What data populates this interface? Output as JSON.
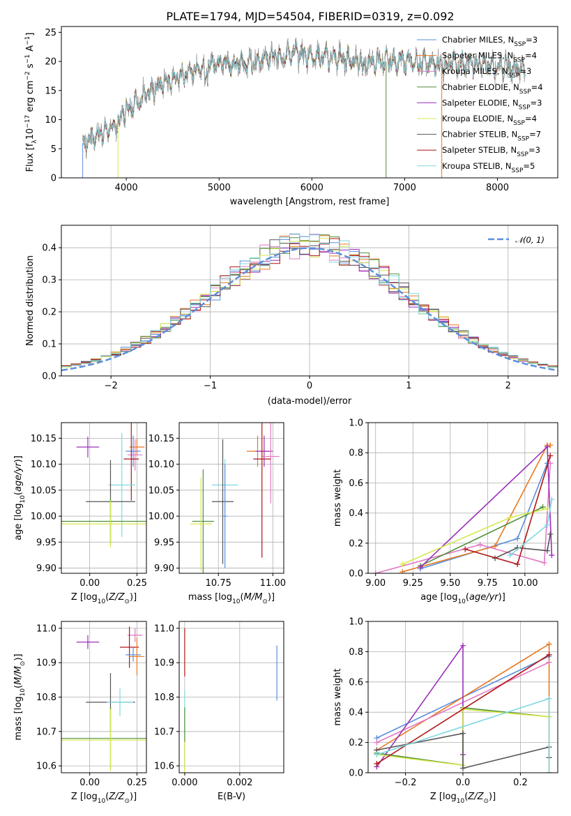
{
  "figure": {
    "title": "PLATE=1794, MJD=54504, FIBERID=0319, z=0.092"
  },
  "colors": {
    "Chabrier MILES": "#5b8fdd",
    "Salpeter MILES": "#e87820",
    "Kroupa MILES": "#e377c2",
    "Chabrier ELODIE": "#4f8f3a",
    "Salpeter ELODIE": "#9b30b8",
    "Kroupa ELODIE": "#d6e84d",
    "Chabrier STELIB": "#555555",
    "Salpeter STELIB": "#b01515",
    "Kroupa STELIB": "#7ed8e0"
  },
  "chart_data": [
    {
      "id": "spectrum",
      "type": "line",
      "xlabel": "wavelength [Angstrom, rest frame]",
      "ylabel": "Flux [f_λ10^-17 erg cm^-2 s^-1 A^-1]",
      "xlim": [
        3300,
        8650
      ],
      "ylim": [
        0,
        26
      ],
      "xticks": [
        4000,
        5000,
        6000,
        7000,
        8000
      ],
      "yticks": [
        0,
        5,
        10,
        15,
        20,
        25
      ],
      "grid": false,
      "legend": "upper right",
      "series": [
        {
          "name": "Chabrier MILES, N_SSP=3",
          "model": "Chabrier MILES"
        },
        {
          "name": "Salpeter MILES, N_SSP=4",
          "model": "Salpeter MILES"
        },
        {
          "name": "Kroupa MILES, N_SSP=3",
          "model": "Kroupa MILES"
        },
        {
          "name": "Chabrier ELODIE, N_SSP=4",
          "model": "Chabrier ELODIE"
        },
        {
          "name": "Salpeter ELODIE, N_SSP=3",
          "model": "Salpeter ELODIE"
        },
        {
          "name": "Kroupa ELODIE, N_SSP=4",
          "model": "Kroupa ELODIE"
        },
        {
          "name": "Chabrier STELIB, N_SSP=7",
          "model": "Chabrier STELIB"
        },
        {
          "name": "Salpeter STELIB, N_SSP=3",
          "model": "Salpeter STELIB"
        },
        {
          "name": "Kroupa STELIB, N_SSP=5",
          "model": "Kroupa STELIB"
        }
      ],
      "continuum": {
        "x": [
          3530,
          3700,
          3900,
          4000,
          4200,
          4400,
          4600,
          4800,
          5000,
          5200,
          5500,
          5800,
          6000,
          6300,
          6600,
          7000,
          7400,
          7800,
          8200,
          8300
        ],
        "y": [
          6,
          7.5,
          9,
          12,
          14,
          16.5,
          17.5,
          19,
          20,
          19.5,
          20.5,
          21.5,
          21,
          20.5,
          20,
          20,
          19.5,
          19.5,
          19,
          18.5
        ]
      }
    },
    {
      "id": "residuals",
      "type": "histogram",
      "xlabel": "(data-model)/error",
      "ylabel": "Normed distribution",
      "xlim": [
        -2.5,
        2.5
      ],
      "ylim": [
        0,
        0.47
      ],
      "xticks": [
        -2,
        -1,
        0,
        1,
        2
      ],
      "yticks": [
        0.0,
        0.1,
        0.2,
        0.3,
        0.4
      ],
      "grid": true,
      "legend": "upper right",
      "reference": {
        "name": "𝒩(0, 1)",
        "color": "#5b8fdd"
      },
      "bin_width": 0.1
    },
    {
      "id": "age_vs_Z",
      "type": "errorbar",
      "xlabel": "Z [log10(Z/Z⊙)]",
      "ylabel": "age [log10(age/yr)]",
      "xlim": [
        -0.15,
        0.3
      ],
      "ylim": [
        9.89,
        10.18
      ],
      "xticks": [
        0.0,
        0.25
      ],
      "yticks": [
        9.9,
        9.95,
        10.0,
        10.05,
        10.1,
        10.15
      ],
      "grid": true,
      "points": [
        {
          "model": "Salpeter ELODIE",
          "x": -0.01,
          "xerr": 0.06,
          "y": 10.133,
          "yerr": 0.02
        },
        {
          "model": "Salpeter MILES",
          "x": 0.25,
          "xerr": 0.04,
          "y": 10.133,
          "yerr": 0.016
        },
        {
          "model": "Chabrier MILES",
          "x": 0.23,
          "xerr": 0.04,
          "y": 10.125,
          "yerr": 0.03
        },
        {
          "model": "Kroupa MILES",
          "x": 0.24,
          "xerr": 0.04,
          "y": 10.118,
          "yerr": 0.03
        },
        {
          "model": "Salpeter STELIB",
          "x": 0.22,
          "xerr": 0.04,
          "y": 10.11,
          "yerr": 0.08
        },
        {
          "model": "Kroupa STELIB",
          "x": 0.17,
          "xerr": 0.07,
          "y": 10.06,
          "yerr": 0.1
        },
        {
          "model": "Chabrier STELIB",
          "x": 0.11,
          "xerr": 0.13,
          "y": 10.028,
          "yerr": 0.08
        },
        {
          "model": "Chabrier ELODIE",
          "x": 0.11,
          "xerr": 0.27,
          "y": 9.99,
          "yerr": 0.045
        },
        {
          "model": "Kroupa ELODIE",
          "x": 0.11,
          "xerr": 0.27,
          "y": 9.985,
          "yerr": 0.045
        }
      ]
    },
    {
      "id": "age_vs_mass",
      "type": "errorbar",
      "xlabel": "mass [log10(M/M⊙)]",
      "ylabel": "",
      "xlim": [
        10.57,
        11.05
      ],
      "ylim": [
        9.89,
        10.18
      ],
      "xticks": [
        10.75,
        11.0
      ],
      "yticks": [
        9.9,
        9.95,
        10.0,
        10.05,
        10.1,
        10.15
      ],
      "grid": true,
      "points": [
        {
          "model": "Salpeter MILES",
          "x": 10.93,
          "xerr": 0.05,
          "y": 10.125,
          "yerr": 0.03
        },
        {
          "model": "Salpeter ELODIE",
          "x": 10.96,
          "xerr": 0.04,
          "y": 10.125,
          "yerr": 0.03
        },
        {
          "model": "Kroupa MILES",
          "x": 10.99,
          "xerr": 0.04,
          "y": 10.115,
          "yerr": 0.09
        },
        {
          "model": "Salpeter STELIB",
          "x": 10.95,
          "xerr": 0.04,
          "y": 10.11,
          "yerr": 0.19
        },
        {
          "model": "Kroupa STELIB",
          "x": 10.78,
          "xerr": 0.06,
          "y": 10.06,
          "yerr": 0.05
        },
        {
          "model": "Chabrier STELIB",
          "x": 10.77,
          "xerr": 0.05,
          "y": 10.028,
          "yerr": 0.12
        },
        {
          "model": "Chabrier ELODIE",
          "x": 10.68,
          "xerr": 0.05,
          "y": 9.99,
          "yerr": 0.1
        },
        {
          "model": "Kroupa ELODIE",
          "x": 10.67,
          "xerr": 0.05,
          "y": 9.985,
          "yerr": 0.09
        },
        {
          "model": "Chabrier MILES",
          "x": 10.78,
          "xerr": 0.01,
          "y": 10.0,
          "yerr": 0.1
        }
      ]
    },
    {
      "id": "mass_weight_vs_age",
      "type": "line",
      "xlabel": "age [log10(age/yr)]",
      "ylabel": "mass weight",
      "xlim": [
        8.95,
        10.22
      ],
      "ylim": [
        0.0,
        1.0
      ],
      "xticks": [
        9.0,
        9.25,
        9.5,
        9.75,
        10.0
      ],
      "yticks": [
        0.0,
        0.2,
        0.4,
        0.6,
        0.8,
        1.0
      ],
      "grid": true,
      "series": [
        {
          "model": "Chabrier MILES",
          "x": [
            9.3,
            9.95,
            10.15
          ],
          "y": [
            0.03,
            0.23,
            0.73
          ]
        },
        {
          "model": "Salpeter MILES",
          "x": [
            9.18,
            9.8,
            10.15,
            10.17
          ],
          "y": [
            0.01,
            0.18,
            0.85,
            0.85
          ]
        },
        {
          "model": "Kroupa MILES",
          "x": [
            9.0,
            9.7,
            10.13,
            10.17
          ],
          "y": [
            0.0,
            0.19,
            0.07,
            0.73
          ]
        },
        {
          "model": "Chabrier ELODIE",
          "x": [
            9.3,
            10.12
          ],
          "y": [
            0.05,
            0.44
          ]
        },
        {
          "model": "Salpeter ELODIE",
          "x": [
            9.3,
            10.15,
            10.18
          ],
          "y": [
            0.04,
            0.84,
            0.12
          ]
        },
        {
          "model": "Kroupa ELODIE",
          "x": [
            9.18,
            9.9,
            10.15
          ],
          "y": [
            0.06,
            0.37,
            0.43
          ]
        },
        {
          "model": "Chabrier STELIB",
          "x": [
            9.8,
            9.95,
            10.15,
            10.17
          ],
          "y": [
            0.1,
            0.17,
            0.15,
            0.26
          ]
        },
        {
          "model": "Salpeter STELIB",
          "x": [
            9.6,
            9.95,
            10.17
          ],
          "y": [
            0.16,
            0.06,
            0.78
          ]
        },
        {
          "model": "Kroupa STELIB",
          "x": [
            9.9,
            10.15,
            10.18
          ],
          "y": [
            0.12,
            0.32,
            0.49
          ]
        }
      ]
    },
    {
      "id": "mass_vs_Z",
      "type": "errorbar",
      "xlabel": "Z [log10(Z/Z⊙)]",
      "ylabel": "mass [log10(M/M⊙)]",
      "xlim": [
        -0.15,
        0.3
      ],
      "ylim": [
        10.58,
        11.02
      ],
      "xticks": [
        0.0,
        0.25
      ],
      "yticks": [
        10.6,
        10.7,
        10.8,
        10.9,
        11.0
      ],
      "grid": true,
      "points": [
        {
          "model": "Salpeter ELODIE",
          "x": -0.01,
          "xerr": 0.06,
          "y": 10.96,
          "yerr": 0.02
        },
        {
          "model": "Kroupa MILES",
          "x": 0.24,
          "xerr": 0.04,
          "y": 10.98,
          "yerr": 0.02
        },
        {
          "model": "Salpeter STELIB",
          "x": 0.21,
          "xerr": 0.05,
          "y": 10.945,
          "yerr": 0.06
        },
        {
          "model": "Chabrier MILES",
          "x": 0.23,
          "xerr": 0.04,
          "y": 10.923,
          "yerr": 0.02
        },
        {
          "model": "Salpeter MILES",
          "x": 0.25,
          "xerr": 0.04,
          "y": 10.918,
          "yerr": 0.055
        },
        {
          "model": "Chabrier STELIB",
          "x": 0.11,
          "xerr": 0.13,
          "y": 10.785,
          "yerr": 0.085
        },
        {
          "model": "Kroupa STELIB",
          "x": 0.16,
          "xerr": 0.07,
          "y": 10.785,
          "yerr": 0.04
        },
        {
          "model": "Chabrier ELODIE",
          "x": 0.11,
          "xerr": 0.27,
          "y": 10.68,
          "yerr": 0.09
        },
        {
          "model": "Kroupa ELODIE",
          "x": 0.11,
          "xerr": 0.27,
          "y": 10.675,
          "yerr": 0.09
        }
      ]
    },
    {
      "id": "mass_vs_ebv",
      "type": "errorbar",
      "xlabel": "E(B-V)",
      "ylabel": "",
      "xlim": [
        -0.0002,
        0.0036
      ],
      "ylim": [
        10.58,
        11.02
      ],
      "xticks": [
        0.0,
        0.002
      ],
      "yticks": [
        10.6,
        10.7,
        10.8,
        10.9,
        11.0
      ],
      "grid": true,
      "points": [
        {
          "model": "Chabrier MILES",
          "x": 0.00335,
          "xerr": 0,
          "y": 10.87,
          "yerr": 0.08
        },
        {
          "model": "Salpeter STELIB",
          "x": 0.0,
          "xerr": 0,
          "y": 10.93,
          "yerr": 0.07
        },
        {
          "model": "Kroupa STELIB",
          "x": 0.0,
          "xerr": 0,
          "y": 10.75,
          "yerr": 0.07
        },
        {
          "model": "Chabrier ELODIE",
          "x": 0.0,
          "xerr": 0,
          "y": 10.68,
          "yerr": 0.09
        },
        {
          "model": "Kroupa ELODIE",
          "x": 0.0,
          "xerr": 0,
          "y": 10.62,
          "yerr": 0.05
        }
      ]
    },
    {
      "id": "mass_weight_vs_Z",
      "type": "line",
      "xlabel": "Z [log10(Z/Z⊙)]",
      "ylabel": "mass weight",
      "xlim": [
        -0.33,
        0.33
      ],
      "ylim": [
        0.0,
        1.0
      ],
      "xticks": [
        -0.2,
        0.0,
        0.2
      ],
      "yticks": [
        0.0,
        0.2,
        0.4,
        0.6,
        0.8,
        1.0
      ],
      "grid": true,
      "series": [
        {
          "model": "Chabrier MILES",
          "x": [
            -0.3,
            0.3
          ],
          "y": [
            0.23,
            0.77
          ]
        },
        {
          "model": "Salpeter MILES",
          "x": [
            -0.3,
            0.3,
            0.3
          ],
          "y": [
            0.15,
            0.85,
            0.0
          ]
        },
        {
          "model": "Kroupa MILES",
          "x": [
            -0.3,
            0.3
          ],
          "y": [
            0.2,
            0.73
          ]
        },
        {
          "model": "Chabrier ELODIE",
          "x": [
            -0.3,
            0.0,
            0.0,
            0.3
          ],
          "y": [
            0.13,
            0.05,
            0.43,
            0.37
          ]
        },
        {
          "model": "Salpeter ELODIE",
          "x": [
            -0.3,
            0.0,
            0.0
          ],
          "y": [
            0.04,
            0.84,
            0.12
          ]
        },
        {
          "model": "Kroupa ELODIE",
          "x": [
            -0.3,
            0.0,
            0.0,
            0.3
          ],
          "y": [
            0.12,
            0.05,
            0.42,
            0.37
          ]
        },
        {
          "model": "Chabrier STELIB",
          "x": [
            -0.3,
            0.0,
            0.0,
            0.3,
            0.3
          ],
          "y": [
            0.15,
            0.26,
            0.03,
            0.17,
            0.1
          ]
        },
        {
          "model": "Salpeter STELIB",
          "x": [
            -0.3,
            0.3
          ],
          "y": [
            0.06,
            0.78
          ]
        },
        {
          "model": "Kroupa STELIB",
          "x": [
            -0.3,
            0.3,
            0.3
          ],
          "y": [
            0.12,
            0.49,
            0.0
          ]
        }
      ]
    }
  ]
}
